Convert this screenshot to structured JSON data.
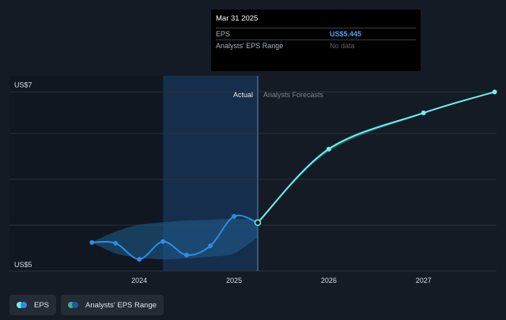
{
  "tooltip": {
    "date": "Mar 31 2025",
    "rows": [
      {
        "label": "EPS",
        "value": "US$5.445"
      },
      {
        "label": "Analysts' EPS Range",
        "value": "No data"
      }
    ]
  },
  "legend": [
    {
      "label": "EPS",
      "icon": "eps-legend-icon"
    },
    {
      "label": "Analysts' EPS Range",
      "icon": "range-legend-icon"
    }
  ],
  "colors": {
    "background": "#151b24",
    "eps_actual": "#2b8de8",
    "eps_forecast": "#6ff0ee",
    "range_band": "#1f5f8f",
    "grid": "#2a313c",
    "highlight": "#17375a"
  },
  "chart_data": {
    "type": "line",
    "title": "",
    "xlabel": "",
    "ylabel": "",
    "divider_labels": {
      "left": "Actual",
      "right": "Analysts Forecasts"
    },
    "y_tick_labels": [
      "US$7",
      "US$5"
    ],
    "y_ticks": [
      7,
      5
    ],
    "ylim": [
      4.87,
      7.05
    ],
    "x_tick_labels": [
      "2024",
      "2025",
      "2026",
      "2027"
    ],
    "x_ticks": [
      2024.0,
      2025.0,
      2026.0,
      2027.0
    ],
    "xlim": [
      2022.63,
      2027.77
    ],
    "divider_x": 2025.25,
    "highlight_range": [
      2024.25,
      2025.25
    ],
    "grid": true,
    "legend_position": "bottom-left",
    "series": [
      {
        "name": "EPS",
        "role": "actual",
        "x": [
          2023.5,
          2023.75,
          2024.0,
          2024.25,
          2024.5,
          2024.75,
          2025.0,
          2025.25
        ],
        "y": [
          5.21,
          5.2,
          5.01,
          5.22,
          5.06,
          5.17,
          5.52,
          5.445
        ]
      },
      {
        "name": "EPS",
        "role": "forecast",
        "x": [
          2025.25,
          2026.0,
          2027.0,
          2027.75
        ],
        "y": [
          5.445,
          6.32,
          6.75,
          7.0
        ]
      }
    ],
    "range_band": {
      "name": "Analysts' EPS Range",
      "x": [
        2023.5,
        2023.75,
        2024.0,
        2024.25,
        2024.5,
        2024.75,
        2025.0,
        2025.25
      ],
      "upper": [
        5.21,
        5.34,
        5.42,
        5.45,
        5.47,
        5.48,
        5.49,
        5.48
      ],
      "lower": [
        5.21,
        5.08,
        5.03,
        5.01,
        5.02,
        5.04,
        5.08,
        5.27
      ]
    },
    "forecast_range_band": {
      "x": [
        2025.25,
        2026.0,
        2027.0
      ],
      "upper": [
        5.445,
        6.34,
        6.76
      ],
      "lower": [
        5.445,
        6.29,
        6.74
      ]
    },
    "markers": {
      "actual_x": [
        2023.5,
        2023.75,
        2024.0,
        2024.25,
        2024.5,
        2024.75,
        2025.0
      ],
      "actual_y": [
        5.21,
        5.2,
        5.01,
        5.22,
        5.06,
        5.17,
        5.52
      ],
      "forecast_x": [
        2026.0,
        2027.0,
        2027.75
      ],
      "forecast_y": [
        6.32,
        6.75,
        7.0
      ],
      "hover_x": 2025.25,
      "hover_y": 5.445
    }
  }
}
